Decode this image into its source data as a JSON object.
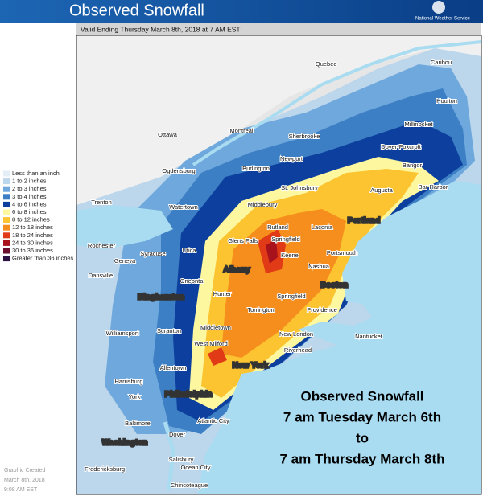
{
  "header": {
    "title": "Observed Snowfall",
    "agency": "National Weather Service"
  },
  "map": {
    "subtitle": "Valid Ending Thursday March 8th, 2018 at 7 AM EST",
    "annotation": [
      "Observed Snowfall",
      "7 am Tuesday March 6th",
      "to",
      "7 am Thursday March 8th"
    ],
    "cities": [
      "Quebec",
      "Caribou",
      "Houlton",
      "Millinocket",
      "Ottawa",
      "Montreal",
      "Sherbrooke",
      "Dover-Foxcroft",
      "Newport",
      "Bangor",
      "Ogdensburg",
      "Burlington",
      "St. Johnsbury",
      "Augusta",
      "Bar Harbor",
      "Trenton",
      "Watertown",
      "Middlebury",
      "Rutland",
      "Laconia",
      "Portland",
      "Glens Falls",
      "Springfield",
      "Rochester",
      "Syracuse",
      "Utica",
      "Keene",
      "Portsmouth",
      "Geneva",
      "Albany",
      "Nashua",
      "Dansville",
      "Oneonta",
      "Boston",
      "Hunter",
      "Binghamton",
      "Springfield",
      "Providence",
      "Torrington",
      "Williamsport",
      "Scranton",
      "Middletown",
      "New London",
      "Nantucket",
      "West Milford",
      "Riverhead",
      "New York",
      "Allentown",
      "Harrisburg",
      "York",
      "Philadelphia",
      "Baltimore",
      "Atlantic City",
      "Dover",
      "Washington",
      "Ocean City",
      "Fredericksburg",
      "Salisbury",
      "Chincoteague"
    ]
  },
  "legend": {
    "items": [
      {
        "label": "Less than an inch",
        "color": "#e4eef6"
      },
      {
        "label": "1 to 2 inches",
        "color": "#bcd6ec"
      },
      {
        "label": "2 to 3 inches",
        "color": "#6fa8dc"
      },
      {
        "label": "3 to 4 inches",
        "color": "#3c7fc4"
      },
      {
        "label": "4 to 6 inches",
        "color": "#0d3f9e"
      },
      {
        "label": "6 to 8 inches",
        "color": "#fdf7a0"
      },
      {
        "label": "8 to 12 inches",
        "color": "#fcc430"
      },
      {
        "label": "12 to 18 inches",
        "color": "#f68e1e"
      },
      {
        "label": "18 to 24 inches",
        "color": "#e03a16"
      },
      {
        "label": "24 to 30 inches",
        "color": "#a8121c"
      },
      {
        "label": "30 to 36 inches",
        "color": "#6a0f2e"
      },
      {
        "label": "Greater than 36 inches",
        "color": "#2c1142"
      }
    ]
  },
  "footer": {
    "lines": [
      "Graphic Created",
      "March 8th, 2018",
      "9:08 AM EST"
    ]
  }
}
